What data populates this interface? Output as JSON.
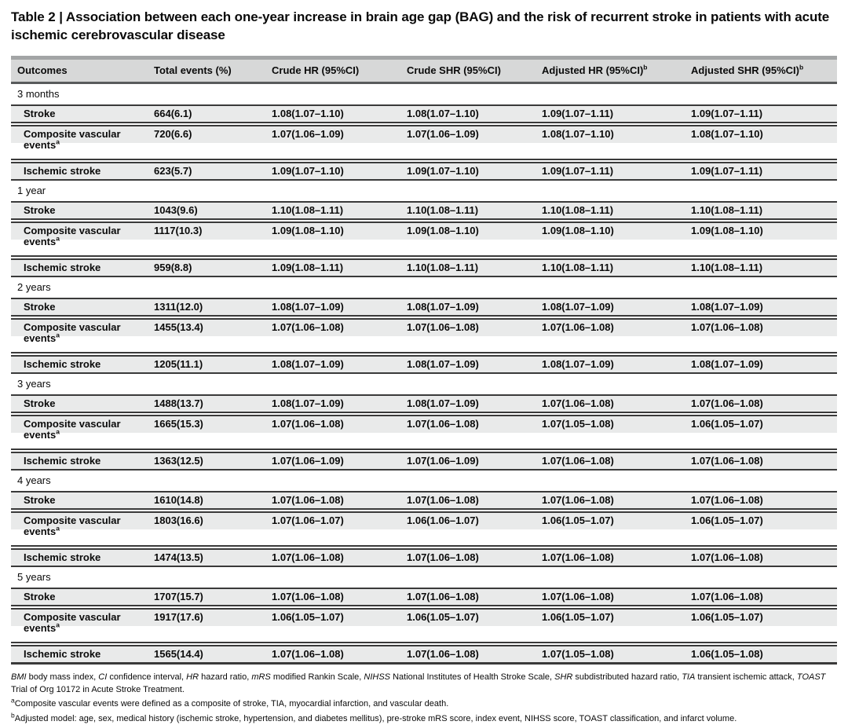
{
  "title": "Table 2 | Association between each one-year increase in brain age gap (BAG) and the risk of recurrent stroke in patients with acute ischemic cerebrovascular disease",
  "table": {
    "columns": [
      {
        "label": "Outcomes",
        "sup": ""
      },
      {
        "label": "Total events (%)",
        "sup": ""
      },
      {
        "label": "Crude HR (95%CI)",
        "sup": ""
      },
      {
        "label": "Crude SHR (95%CI)",
        "sup": ""
      },
      {
        "label": "Adjusted HR (95%CI)",
        "sup": "b"
      },
      {
        "label": "Adjusted SHR (95%CI)",
        "sup": "b"
      }
    ],
    "sections": [
      {
        "period": "3 months",
        "rows": [
          {
            "outcome": "Stroke",
            "sup": "",
            "two_line": false,
            "values": [
              "664(6.1)",
              "1.08(1.07–1.10)",
              "1.08(1.07–1.10)",
              "1.09(1.07–1.11)",
              "1.09(1.07–1.11)"
            ]
          },
          {
            "outcome": "Composite vascular events",
            "sup": "a",
            "two_line": true,
            "values": [
              "720(6.6)",
              "1.07(1.06–1.09)",
              "1.07(1.06–1.09)",
              "1.08(1.07–1.10)",
              "1.08(1.07–1.10)"
            ]
          },
          {
            "outcome": "Ischemic stroke",
            "sup": "",
            "two_line": false,
            "values": [
              "623(5.7)",
              "1.09(1.07–1.10)",
              "1.09(1.07–1.10)",
              "1.09(1.07–1.11)",
              "1.09(1.07–1.11)"
            ]
          }
        ]
      },
      {
        "period": "1 year",
        "rows": [
          {
            "outcome": "Stroke",
            "sup": "",
            "two_line": false,
            "values": [
              "1043(9.6)",
              "1.10(1.08–1.11)",
              "1.10(1.08–1.11)",
              "1.10(1.08–1.11)",
              "1.10(1.08–1.11)"
            ]
          },
          {
            "outcome": "Composite vascular events",
            "sup": "a",
            "two_line": true,
            "values": [
              "1117(10.3)",
              "1.09(1.08–1.10)",
              "1.09(1.08–1.10)",
              "1.09(1.08–1.10)",
              "1.09(1.08–1.10)"
            ]
          },
          {
            "outcome": "Ischemic stroke",
            "sup": "",
            "two_line": false,
            "values": [
              "959(8.8)",
              "1.09(1.08–1.11)",
              "1.10(1.08–1.11)",
              "1.10(1.08–1.11)",
              "1.10(1.08–1.11)"
            ]
          }
        ]
      },
      {
        "period": "2 years",
        "rows": [
          {
            "outcome": "Stroke",
            "sup": "",
            "two_line": false,
            "values": [
              "1311(12.0)",
              "1.08(1.07–1.09)",
              "1.08(1.07–1.09)",
              "1.08(1.07–1.09)",
              "1.08(1.07–1.09)"
            ]
          },
          {
            "outcome": "Composite vascular events",
            "sup": "a",
            "two_line": true,
            "values": [
              "1455(13.4)",
              "1.07(1.06–1.08)",
              "1.07(1.06–1.08)",
              "1.07(1.06–1.08)",
              "1.07(1.06–1.08)"
            ]
          },
          {
            "outcome": "Ischemic stroke",
            "sup": "",
            "two_line": false,
            "values": [
              "1205(11.1)",
              "1.08(1.07–1.09)",
              "1.08(1.07–1.09)",
              "1.08(1.07–1.09)",
              "1.08(1.07–1.09)"
            ]
          }
        ]
      },
      {
        "period": "3 years",
        "rows": [
          {
            "outcome": "Stroke",
            "sup": "",
            "two_line": false,
            "values": [
              "1488(13.7)",
              "1.08(1.07–1.09)",
              "1.08(1.07–1.09)",
              "1.07(1.06–1.08)",
              "1.07(1.06–1.08)"
            ]
          },
          {
            "outcome": "Composite vascular events",
            "sup": "a",
            "two_line": true,
            "values": [
              "1665(15.3)",
              "1.07(1.06–1.08)",
              "1.07(1.06–1.08)",
              "1.07(1.05–1.08)",
              "1.06(1.05–1.07)"
            ]
          },
          {
            "outcome": "Ischemic stroke",
            "sup": "",
            "two_line": false,
            "values": [
              "1363(12.5)",
              "1.07(1.06–1.09)",
              "1.07(1.06–1.09)",
              "1.07(1.06–1.08)",
              "1.07(1.06–1.08)"
            ]
          }
        ]
      },
      {
        "period": "4 years",
        "rows": [
          {
            "outcome": "Stroke",
            "sup": "",
            "two_line": false,
            "values": [
              "1610(14.8)",
              "1.07(1.06–1.08)",
              "1.07(1.06–1.08)",
              "1.07(1.06–1.08)",
              "1.07(1.06–1.08)"
            ]
          },
          {
            "outcome": "Composite vascular events",
            "sup": "a",
            "two_line": true,
            "values": [
              "1803(16.6)",
              "1.07(1.06–1.07)",
              "1.06(1.06–1.07)",
              "1.06(1.05–1.07)",
              "1.06(1.05–1.07)"
            ]
          },
          {
            "outcome": "Ischemic stroke",
            "sup": "",
            "two_line": false,
            "values": [
              "1474(13.5)",
              "1.07(1.06–1.08)",
              "1.07(1.06–1.08)",
              "1.07(1.06–1.08)",
              "1.07(1.06–1.08)"
            ]
          }
        ]
      },
      {
        "period": "5 years",
        "rows": [
          {
            "outcome": "Stroke",
            "sup": "",
            "two_line": false,
            "values": [
              "1707(15.7)",
              "1.07(1.06–1.08)",
              "1.07(1.06–1.08)",
              "1.07(1.06–1.08)",
              "1.07(1.06–1.08)"
            ]
          },
          {
            "outcome": "Composite vascular events",
            "sup": "a",
            "two_line": true,
            "values": [
              "1917(17.6)",
              "1.06(1.05–1.07)",
              "1.06(1.05–1.07)",
              "1.06(1.05–1.07)",
              "1.06(1.05–1.07)"
            ]
          },
          {
            "outcome": "Ischemic stroke",
            "sup": "",
            "two_line": false,
            "values": [
              "1565(14.4)",
              "1.07(1.06–1.08)",
              "1.07(1.06–1.08)",
              "1.07(1.05–1.08)",
              "1.06(1.05–1.08)"
            ]
          }
        ]
      }
    ]
  },
  "footnotes": {
    "abbreviations": [
      {
        "text": "BMI",
        "italic": true
      },
      {
        "text": " body mass index, ",
        "italic": false
      },
      {
        "text": "CI",
        "italic": true
      },
      {
        "text": " confidence interval, ",
        "italic": false
      },
      {
        "text": "HR",
        "italic": true
      },
      {
        "text": " hazard ratio, ",
        "italic": false
      },
      {
        "text": "mRS",
        "italic": true
      },
      {
        "text": " modified Rankin Scale, ",
        "italic": false
      },
      {
        "text": "NIHSS",
        "italic": true
      },
      {
        "text": " National Institutes of Health Stroke Scale, ",
        "italic": false
      },
      {
        "text": "SHR",
        "italic": true
      },
      {
        "text": " subdistributed hazard ratio, ",
        "italic": false
      },
      {
        "text": "TIA",
        "italic": true
      },
      {
        "text": " transient ischemic attack, ",
        "italic": false
      },
      {
        "text": "TOAST",
        "italic": true
      },
      {
        "text": " Trial of Org 10172 in Acute Stroke Treatment.",
        "italic": false
      }
    ],
    "note_a": {
      "marker": "a",
      "text": "Composite vascular events were defined as a composite of stroke, TIA, myocardial infarction, and vascular death."
    },
    "note_b": {
      "marker": "b",
      "text": "Adjusted model: age, sex, medical history (ischemic stroke, hypertension, and diabetes mellitus), pre-stroke mRS score, index event, NIHSS score, TOAST classification, and infarct volume."
    }
  }
}
